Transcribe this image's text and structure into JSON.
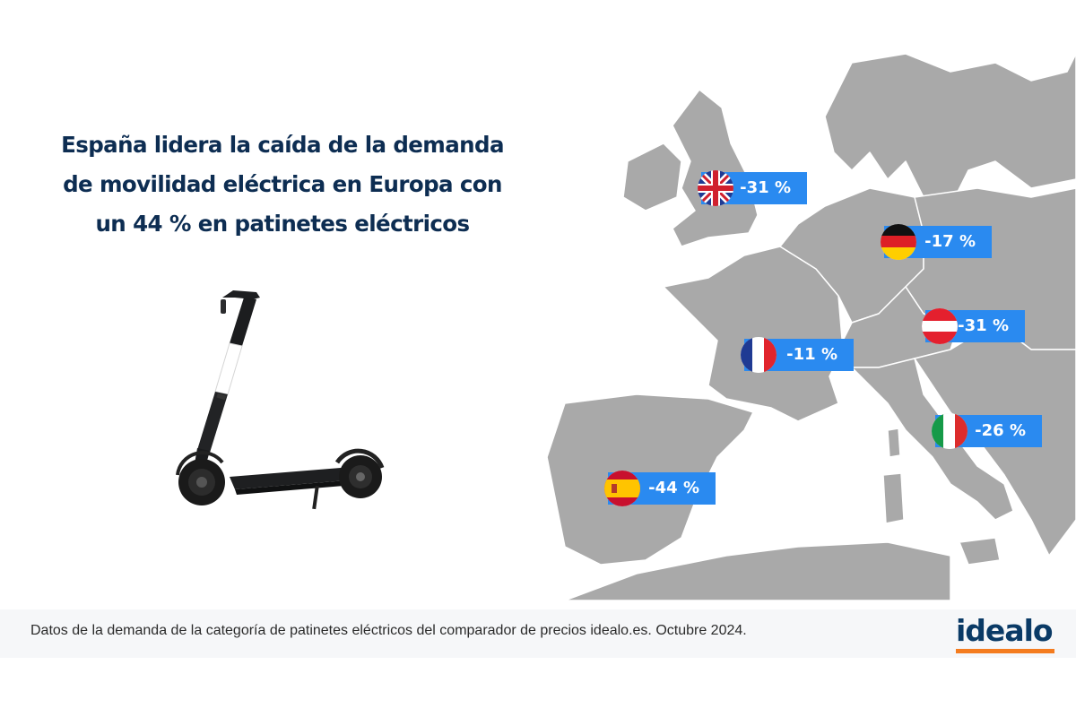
{
  "headline": {
    "line1": "España lidera la caída de la demanda",
    "line2": "de movilidad eléctrica en Europa con",
    "line3": "un  44 % en patinetes eléctricos"
  },
  "chart_data": {
    "type": "map",
    "metric": "Demanda de patinetes eléctricos",
    "countries": [
      {
        "country": "Reino Unido",
        "flag": "uk-flag-icon",
        "value": -31,
        "label": "-31 %"
      },
      {
        "country": "Alemania",
        "flag": "germany-flag-icon",
        "value": -17,
        "label": "-17 %"
      },
      {
        "country": "Austria",
        "flag": "austria-flag-icon",
        "value": -31,
        "label": "-31 %"
      },
      {
        "country": "Francia",
        "flag": "france-flag-icon",
        "value": -11,
        "label": "-11 %"
      },
      {
        "country": "Italia",
        "flag": "italy-flag-icon",
        "value": -26,
        "label": "-26 %"
      },
      {
        "country": "España",
        "flag": "spain-flag-icon",
        "value": -44,
        "label": "-44 %"
      }
    ]
  },
  "footer": {
    "source": "Datos de la demanda de la categoría de patinetes eléctricos del comparador de precios idealo.es. Octubre 2024."
  },
  "logo": {
    "text": "idealo"
  },
  "colors": {
    "headline": "#0d2d52",
    "label_bg": "#2a8af0",
    "map_land": "#a9a9a9",
    "logo": "#0a3a66",
    "logo_accent": "#f47c1f"
  },
  "image": {
    "subject": "scooter-image"
  }
}
